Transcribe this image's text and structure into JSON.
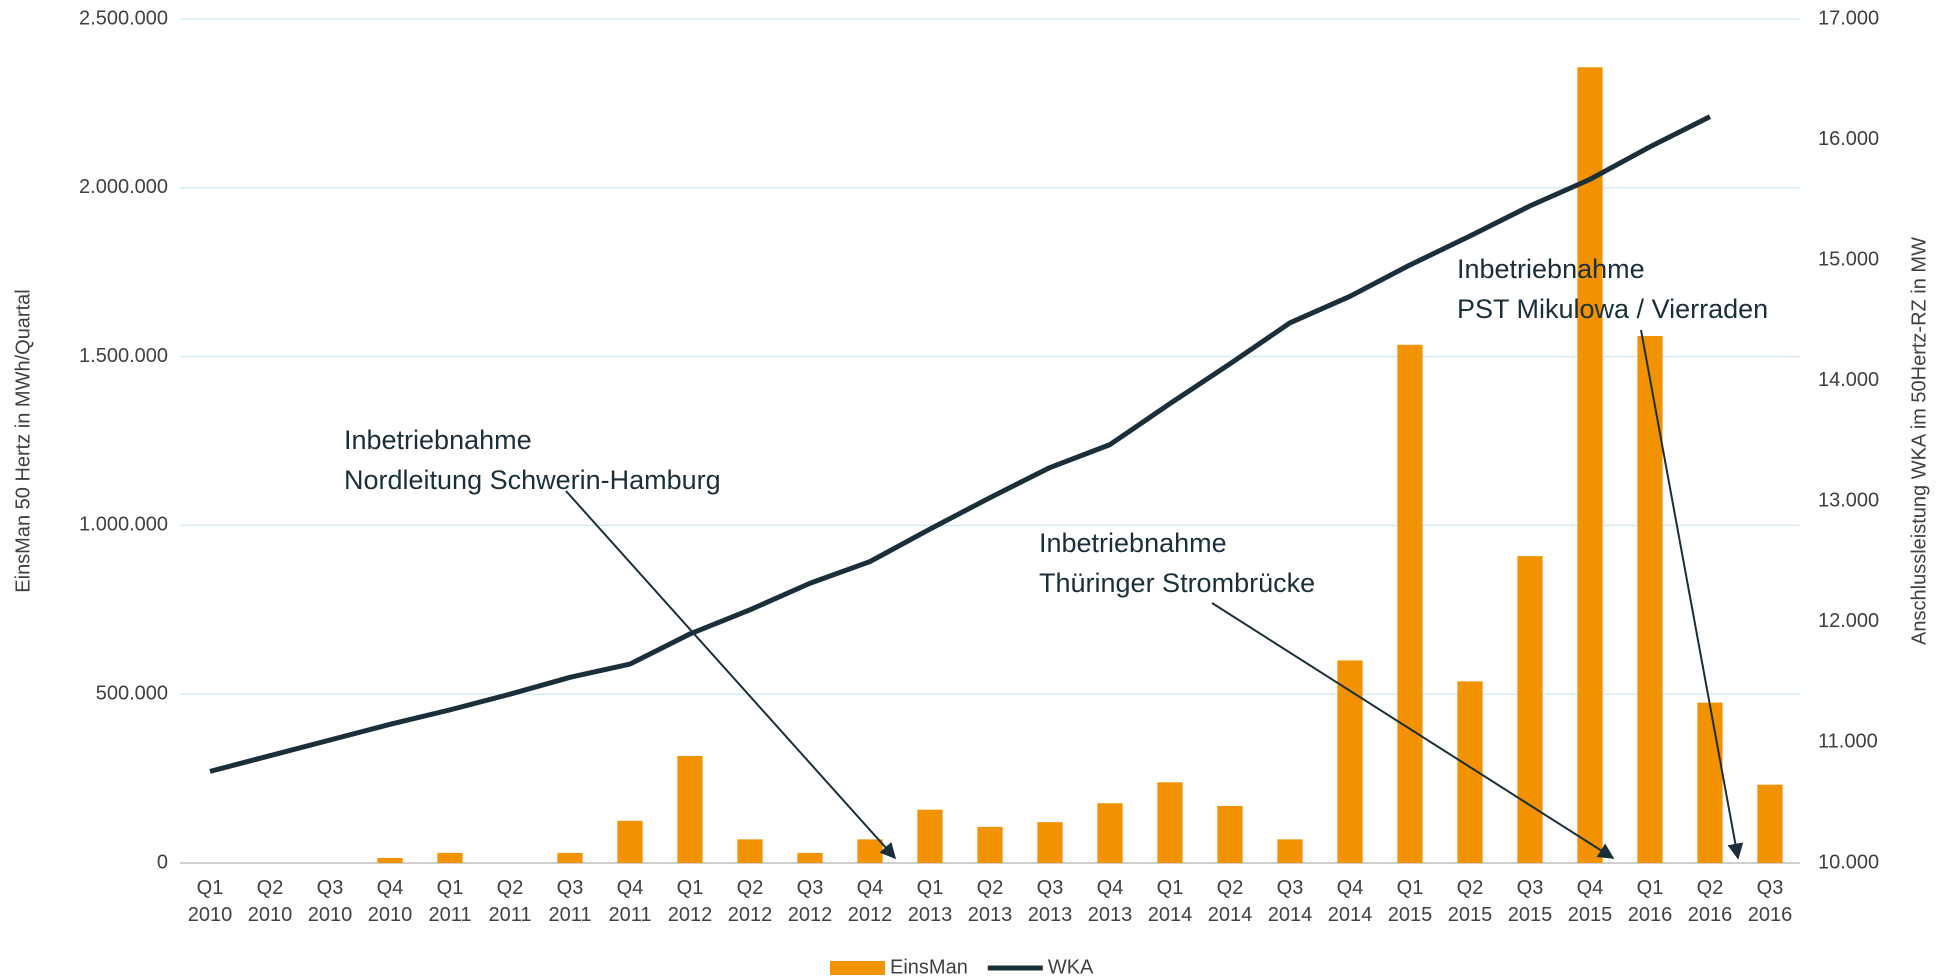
{
  "chart_data": {
    "type": "bar_line",
    "y_label": "EinsMan 50 Hertz in MWh/Quartal",
    "y2_label": "Anschlussleistung WKA im 50Hertz-RZ in MW",
    "categories": [
      "Q1 2010",
      "Q2 2010",
      "Q3 2010",
      "Q4 2010",
      "Q1 2011",
      "Q2 2011",
      "Q3 2011",
      "Q4 2011",
      "Q1 2012",
      "Q2 2012",
      "Q3 2012",
      "Q4 2012",
      "Q1 2013",
      "Q2 2013",
      "Q3 2013",
      "Q4 2013",
      "Q1 2014",
      "Q2 2014",
      "Q3 2014",
      "Q4 2014",
      "Q1 2015",
      "Q2 2015",
      "Q3 2015",
      "Q4 2015",
      "Q1 2016",
      "Q2 2016",
      "Q3 2016"
    ],
    "series": [
      {
        "name": "EinsMan",
        "type": "bar",
        "color": "#f39200",
        "values": [
          0,
          0,
          0,
          15000,
          30000,
          0,
          30000,
          125000,
          317000,
          70000,
          30000,
          70000,
          158000,
          107000,
          121000,
          177000,
          239000,
          169000,
          70000,
          600000,
          1535000,
          538000,
          909000,
          2357000,
          1561000,
          475000,
          232000
        ]
      },
      {
        "name": "WKA",
        "type": "line",
        "axis": "y2",
        "color": "#1b2f3a",
        "values": [
          10760,
          10890,
          11020,
          11150,
          11270,
          11400,
          11540,
          11650,
          11900,
          12100,
          12320,
          12500,
          12770,
          13030,
          13280,
          13470,
          13810,
          14140,
          14480,
          14700,
          14960,
          15200,
          15450,
          15670,
          15940,
          16190,
          null
        ]
      }
    ],
    "ylim": [
      0,
      2500000
    ],
    "yticks": [
      0,
      {
        "value": 500000,
        "label": "500.000"
      },
      {
        "value": 1000000,
        "label": "1.000.000"
      },
      {
        "value": 1500000,
        "label": "1.500.000"
      },
      {
        "value": 2000000,
        "label": "2.000.000"
      },
      {
        "value": 2500000,
        "label": "2.500.000"
      }
    ],
    "y2lim": [
      10000,
      17000
    ],
    "y2ticks": [
      {
        "value": 10000,
        "label": "10.000"
      },
      {
        "value": 11000,
        "label": "11.000"
      },
      {
        "value": 12000,
        "label": "12.000"
      },
      {
        "value": 13000,
        "label": "13.000"
      },
      {
        "value": 14000,
        "label": "14.000"
      },
      {
        "value": 15000,
        "label": "15.000"
      },
      {
        "value": 16000,
        "label": "16.000"
      },
      {
        "value": 17000,
        "label": "17.000"
      }
    ],
    "grid": true,
    "legend": "bottom",
    "annotations": [
      {
        "lines": [
          "Inbetriebnahme",
          "Nordleitung Schwerin-Hamburg"
        ]
      },
      {
        "lines": [
          "Inbetriebnahme",
          "Thüringer Strombrücke"
        ]
      },
      {
        "lines": [
          "Inbetriebnahme",
          "PST Mikulowa / Vierraden"
        ]
      }
    ]
  }
}
